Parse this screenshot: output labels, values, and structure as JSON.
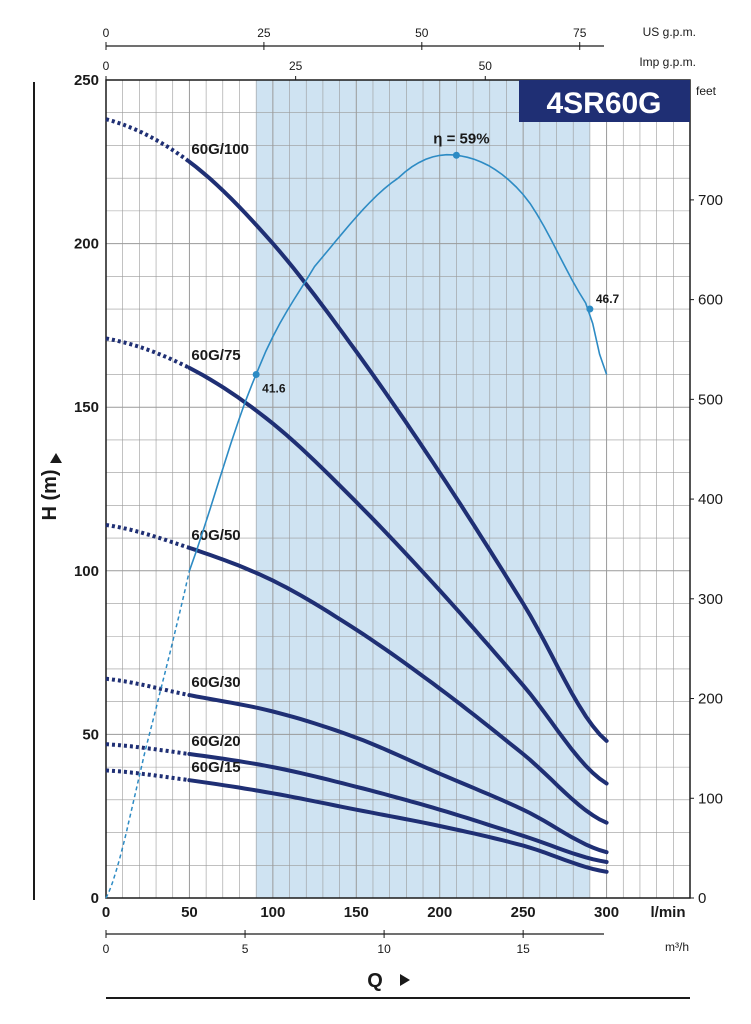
{
  "chart_data": {
    "type": "line",
    "title": "4SR60G",
    "xlabel": "Q",
    "ylabel": "H (m)",
    "x_unit": "l/min",
    "xlim": [
      0,
      350
    ],
    "ylim": [
      0,
      250
    ],
    "x_ticks": [
      0,
      50,
      100,
      150,
      200,
      250,
      300
    ],
    "y_ticks": [
      0,
      50,
      100,
      150,
      200,
      250
    ],
    "secondary_axes": {
      "m3h": {
        "unit": "m³/h",
        "ticks": [
          "0",
          "5",
          "10",
          "15"
        ]
      },
      "us_gpm": {
        "unit": "US g.p.m.",
        "ticks": [
          "0",
          "25",
          "50",
          "75"
        ]
      },
      "imp_gpm": {
        "unit": "Imp g.p.m.",
        "ticks": [
          "0",
          "25",
          "50"
        ]
      },
      "feet": {
        "unit": "feet",
        "ticks": [
          "0",
          "100",
          "200",
          "300",
          "400",
          "500",
          "600",
          "700"
        ]
      }
    },
    "recommended_range": [
      90,
      290
    ],
    "grid": true,
    "series": [
      {
        "name": "60G/100",
        "label": "60G/100",
        "dashed_x": [
          0,
          50
        ],
        "solid_x": [
          50,
          300
        ],
        "points": [
          [
            0,
            238
          ],
          [
            50,
            225
          ],
          [
            100,
            200
          ],
          [
            150,
            167
          ],
          [
            200,
            130
          ],
          [
            250,
            90
          ],
          [
            300,
            48
          ]
        ]
      },
      {
        "name": "60G/75",
        "label": "60G/75",
        "dashed_x": [
          0,
          50
        ],
        "solid_x": [
          50,
          300
        ],
        "points": [
          [
            0,
            171
          ],
          [
            50,
            162
          ],
          [
            100,
            145
          ],
          [
            150,
            121
          ],
          [
            200,
            94
          ],
          [
            250,
            65
          ],
          [
            300,
            35
          ]
        ]
      },
      {
        "name": "60G/50",
        "label": "60G/50",
        "dashed_x": [
          0,
          50
        ],
        "solid_x": [
          50,
          300
        ],
        "points": [
          [
            0,
            114
          ],
          [
            50,
            107
          ],
          [
            100,
            97
          ],
          [
            150,
            82
          ],
          [
            200,
            64
          ],
          [
            250,
            44
          ],
          [
            300,
            23
          ]
        ]
      },
      {
        "name": "60G/30",
        "label": "60G/30",
        "dashed_x": [
          0,
          50
        ],
        "solid_x": [
          50,
          300
        ],
        "points": [
          [
            0,
            67
          ],
          [
            50,
            62
          ],
          [
            100,
            57
          ],
          [
            150,
            49
          ],
          [
            200,
            38
          ],
          [
            250,
            27
          ],
          [
            300,
            14
          ]
        ]
      },
      {
        "name": "60G/20",
        "label": "60G/20",
        "dashed_x": [
          0,
          50
        ],
        "solid_x": [
          50,
          300
        ],
        "points": [
          [
            0,
            47
          ],
          [
            50,
            44
          ],
          [
            100,
            40
          ],
          [
            150,
            34
          ],
          [
            200,
            27
          ],
          [
            250,
            19
          ],
          [
            300,
            11
          ]
        ]
      },
      {
        "name": "60G/15",
        "label": "60G/15",
        "dashed_x": [
          0,
          50
        ],
        "solid_x": [
          50,
          300
        ],
        "points": [
          [
            0,
            39
          ],
          [
            50,
            36
          ],
          [
            100,
            32
          ],
          [
            150,
            27
          ],
          [
            200,
            22
          ],
          [
            250,
            16
          ],
          [
            300,
            8
          ]
        ]
      }
    ],
    "efficiency": {
      "label": "η = 59%",
      "dashed_x": [
        0,
        50
      ],
      "points": [
        [
          0,
          0
        ],
        [
          25,
          48
        ],
        [
          50,
          100
        ],
        [
          90,
          160
        ],
        [
          125,
          193
        ],
        [
          175,
          220
        ],
        [
          210,
          227
        ],
        [
          250,
          215
        ],
        [
          290,
          180
        ],
        [
          300,
          160
        ]
      ],
      "annotations": [
        {
          "x": 90,
          "y": 160,
          "text": "41.6"
        },
        {
          "x": 210,
          "y": 227,
          "text": ""
        },
        {
          "x": 290,
          "y": 180,
          "text": "46.7"
        }
      ]
    }
  }
}
